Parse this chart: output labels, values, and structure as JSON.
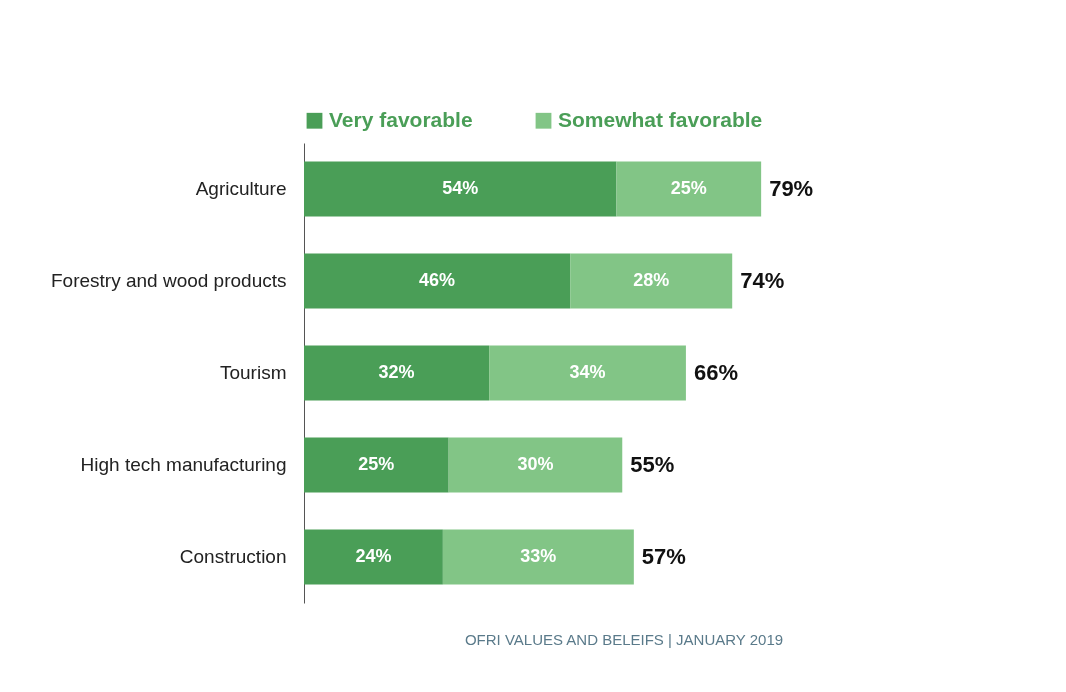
{
  "chart_data": {
    "type": "bar",
    "orientation": "horizontal",
    "stacked": true,
    "legend": "top left",
    "categories": [
      "Agriculture",
      "Forestry and wood products",
      "Tourism",
      "High tech manufacturing",
      "Construction"
    ],
    "series": [
      {
        "name": "Very favorable",
        "color": "#4a9e57",
        "values": [
          54,
          46,
          32,
          25,
          24
        ],
        "value_labels": [
          "54%",
          "46%",
          "32%",
          "25%",
          "24%"
        ]
      },
      {
        "name": "Somewhat favorable",
        "color": "#82c586",
        "values": [
          25,
          28,
          34,
          30,
          33
        ],
        "value_labels": [
          "25%",
          "28%",
          "34%",
          "30%",
          "33%"
        ]
      }
    ],
    "totals": [
      "79%",
      "74%",
      "66%",
      "55%",
      "57%"
    ],
    "annotations": [
      "OFRI VALUES AND BELEIFS | JANUARY 2019"
    ]
  }
}
